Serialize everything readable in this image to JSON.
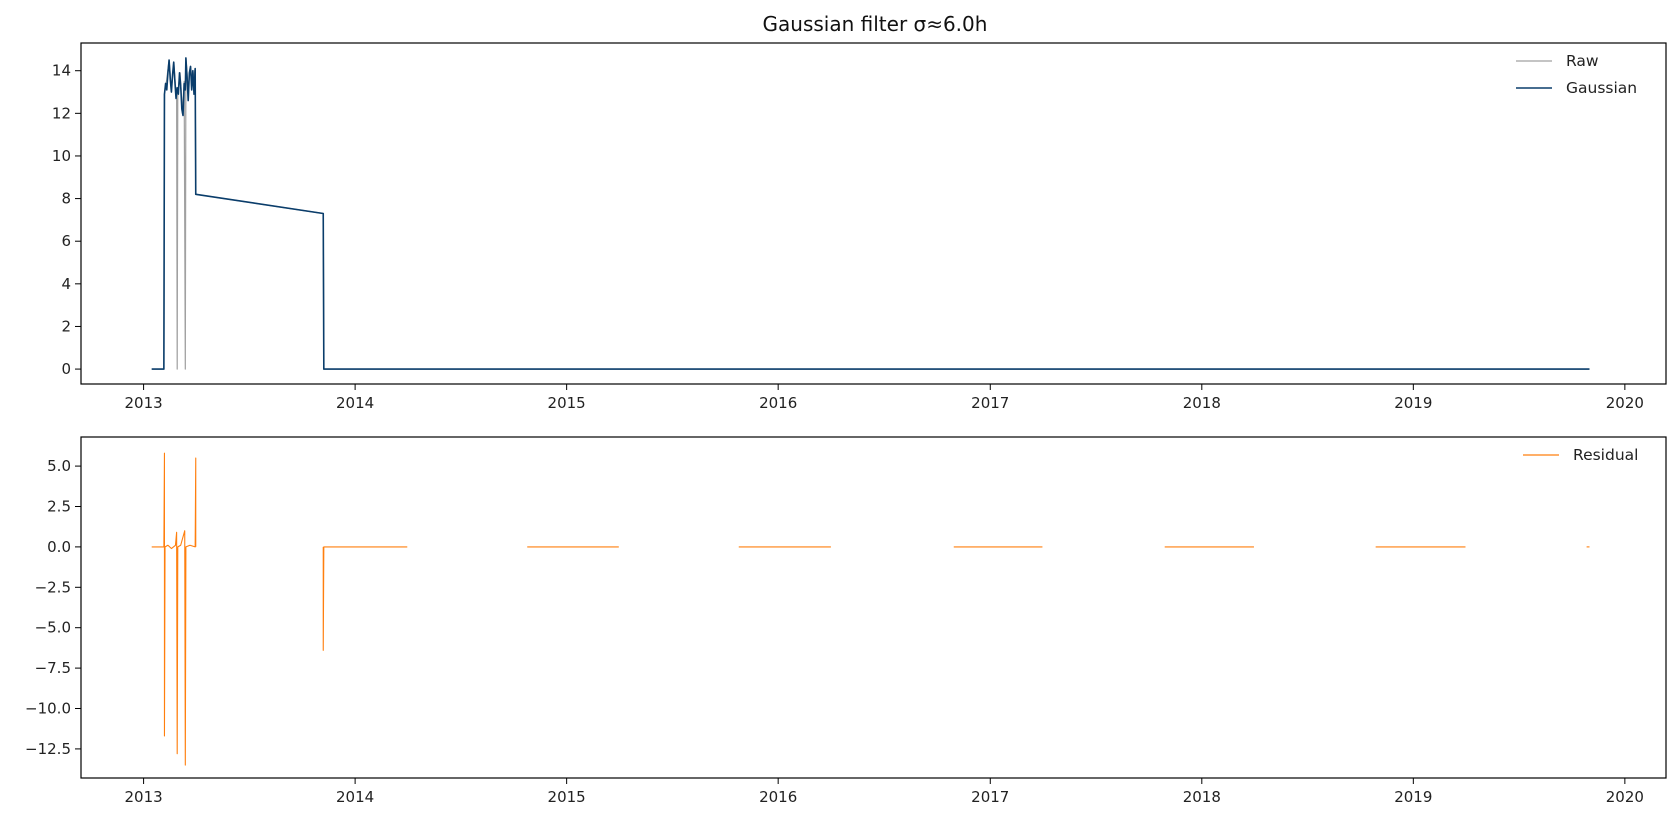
{
  "chart_data": [
    {
      "type": "line",
      "title": "Gaussian filter σ≈6.0h",
      "xlabel": "",
      "ylabel": "",
      "xlim": [
        "2012-09-15",
        "2020-03-12"
      ],
      "ylim": [
        -0.7,
        15.3
      ],
      "x_ticks": [
        "2013",
        "2014",
        "2015",
        "2016",
        "2017",
        "2018",
        "2019",
        "2020"
      ],
      "y_ticks": [
        0,
        2,
        4,
        6,
        8,
        10,
        12,
        14
      ],
      "grid": false,
      "legend": "top-right",
      "series": [
        {
          "name": "Raw",
          "color": "#a0a0a0",
          "points": [
            [
              "2013-01-15",
              0
            ],
            [
              "2013-02-05",
              0
            ],
            [
              "2013-02-06",
              12.9
            ],
            [
              "2013-02-10",
              13.6
            ],
            [
              "2013-02-14",
              14.5
            ],
            [
              "2013-02-18",
              13.1
            ],
            [
              "2013-02-22",
              14.4
            ],
            [
              "2013-02-25",
              13.3
            ],
            [
              "2013-02-27",
              12.6
            ],
            [
              "2013-02-28",
              0
            ],
            [
              "2013-03-01",
              13.0
            ],
            [
              "2013-03-05",
              13.9
            ],
            [
              "2013-03-09",
              12.0
            ],
            [
              "2013-03-12",
              13.5
            ],
            [
              "2013-03-14",
              0
            ],
            [
              "2013-03-15",
              14.6
            ],
            [
              "2013-03-19",
              13.2
            ],
            [
              "2013-03-23",
              14.2
            ],
            [
              "2013-03-26",
              13.4
            ],
            [
              "2013-03-31",
              14.1
            ],
            [
              "2013-04-01",
              8.2
            ],
            [
              "2013-11-07",
              7.3
            ],
            [
              "2013-11-08",
              0
            ],
            [
              "2019-11-01",
              0
            ]
          ]
        },
        {
          "name": "Gaussian",
          "color": "#0a3d6b",
          "points": [
            [
              "2013-01-15",
              0
            ],
            [
              "2013-02-05",
              0
            ],
            [
              "2013-02-06",
              12.9
            ],
            [
              "2013-02-08",
              13.4
            ],
            [
              "2013-02-10",
              13.1
            ],
            [
              "2013-02-12",
              13.9
            ],
            [
              "2013-02-14",
              14.5
            ],
            [
              "2013-02-16",
              13.6
            ],
            [
              "2013-02-18",
              13.0
            ],
            [
              "2013-02-20",
              13.8
            ],
            [
              "2013-02-22",
              14.4
            ],
            [
              "2013-02-24",
              13.5
            ],
            [
              "2013-02-26",
              12.7
            ],
            [
              "2013-02-28",
              13.2
            ],
            [
              "2013-03-02",
              12.9
            ],
            [
              "2013-03-04",
              13.9
            ],
            [
              "2013-03-06",
              13.3
            ],
            [
              "2013-03-08",
              12.2
            ],
            [
              "2013-03-10",
              11.9
            ],
            [
              "2013-03-12",
              13.4
            ],
            [
              "2013-03-14",
              13.1
            ],
            [
              "2013-03-15",
              14.6
            ],
            [
              "2013-03-17",
              13.7
            ],
            [
              "2013-03-19",
              12.6
            ],
            [
              "2013-03-21",
              13.9
            ],
            [
              "2013-03-23",
              14.2
            ],
            [
              "2013-03-25",
              13.1
            ],
            [
              "2013-03-27",
              14.0
            ],
            [
              "2013-03-29",
              12.9
            ],
            [
              "2013-03-31",
              14.1
            ],
            [
              "2013-04-01",
              8.2
            ],
            [
              "2013-11-07",
              7.3
            ],
            [
              "2013-11-08",
              0
            ],
            [
              "2019-11-01",
              0
            ]
          ]
        }
      ]
    },
    {
      "type": "line",
      "title": "",
      "xlabel": "",
      "ylabel": "",
      "xlim": [
        "2012-09-15",
        "2020-03-12"
      ],
      "ylim": [
        -14.3,
        6.8
      ],
      "x_ticks": [
        "2013",
        "2014",
        "2015",
        "2016",
        "2017",
        "2018",
        "2019",
        "2020"
      ],
      "y_ticks": [
        "5.0",
        "2.5",
        "0.0",
        "−2.5",
        "−5.0",
        "−7.5",
        "−10.0",
        "−12.5"
      ],
      "y_tick_values": [
        5.0,
        2.5,
        0.0,
        -2.5,
        -5.0,
        -7.5,
        -10.0,
        -12.5
      ],
      "grid": false,
      "legend": "top-right",
      "series": [
        {
          "name": "Residual",
          "color": "#ff7f0e",
          "segments": [
            [
              [
                "2013-01-15",
                0
              ],
              [
                "2013-02-05",
                0
              ],
              [
                "2013-02-06",
                5.8
              ],
              [
                "2013-02-06",
                -11.7
              ],
              [
                "2013-02-07",
                0
              ],
              [
                "2013-02-12",
                0.1
              ],
              [
                "2013-02-18",
                -0.1
              ],
              [
                "2013-02-25",
                0.1
              ],
              [
                "2013-02-27",
                0.9
              ],
              [
                "2013-02-28",
                -12.8
              ],
              [
                "2013-03-01",
                0
              ],
              [
                "2013-03-06",
                0.1
              ],
              [
                "2013-03-13",
                1.0
              ],
              [
                "2013-03-14",
                -13.5
              ],
              [
                "2013-03-15",
                0
              ],
              [
                "2013-03-22",
                0.1
              ],
              [
                "2013-03-31",
                0
              ],
              [
                "2013-04-01",
                5.5
              ],
              [
                "2013-04-01",
                0
              ]
            ],
            [
              [
                "2013-11-07",
                0
              ],
              [
                "2013-11-07",
                -6.4
              ],
              [
                "2013-11-08",
                0
              ],
              [
                "2014-04-01",
                0
              ]
            ],
            [
              [
                "2014-10-25",
                0
              ],
              [
                "2015-04-01",
                0
              ]
            ],
            [
              [
                "2015-10-25",
                0
              ],
              [
                "2016-04-01",
                0
              ]
            ],
            [
              [
                "2016-10-30",
                0
              ],
              [
                "2017-04-01",
                0
              ]
            ],
            [
              [
                "2017-10-29",
                0
              ],
              [
                "2018-04-01",
                0
              ]
            ],
            [
              [
                "2018-10-28",
                0
              ],
              [
                "2019-04-01",
                0
              ]
            ],
            [
              [
                "2019-10-27",
                0
              ],
              [
                "2019-11-01",
                0
              ]
            ]
          ]
        }
      ]
    }
  ]
}
